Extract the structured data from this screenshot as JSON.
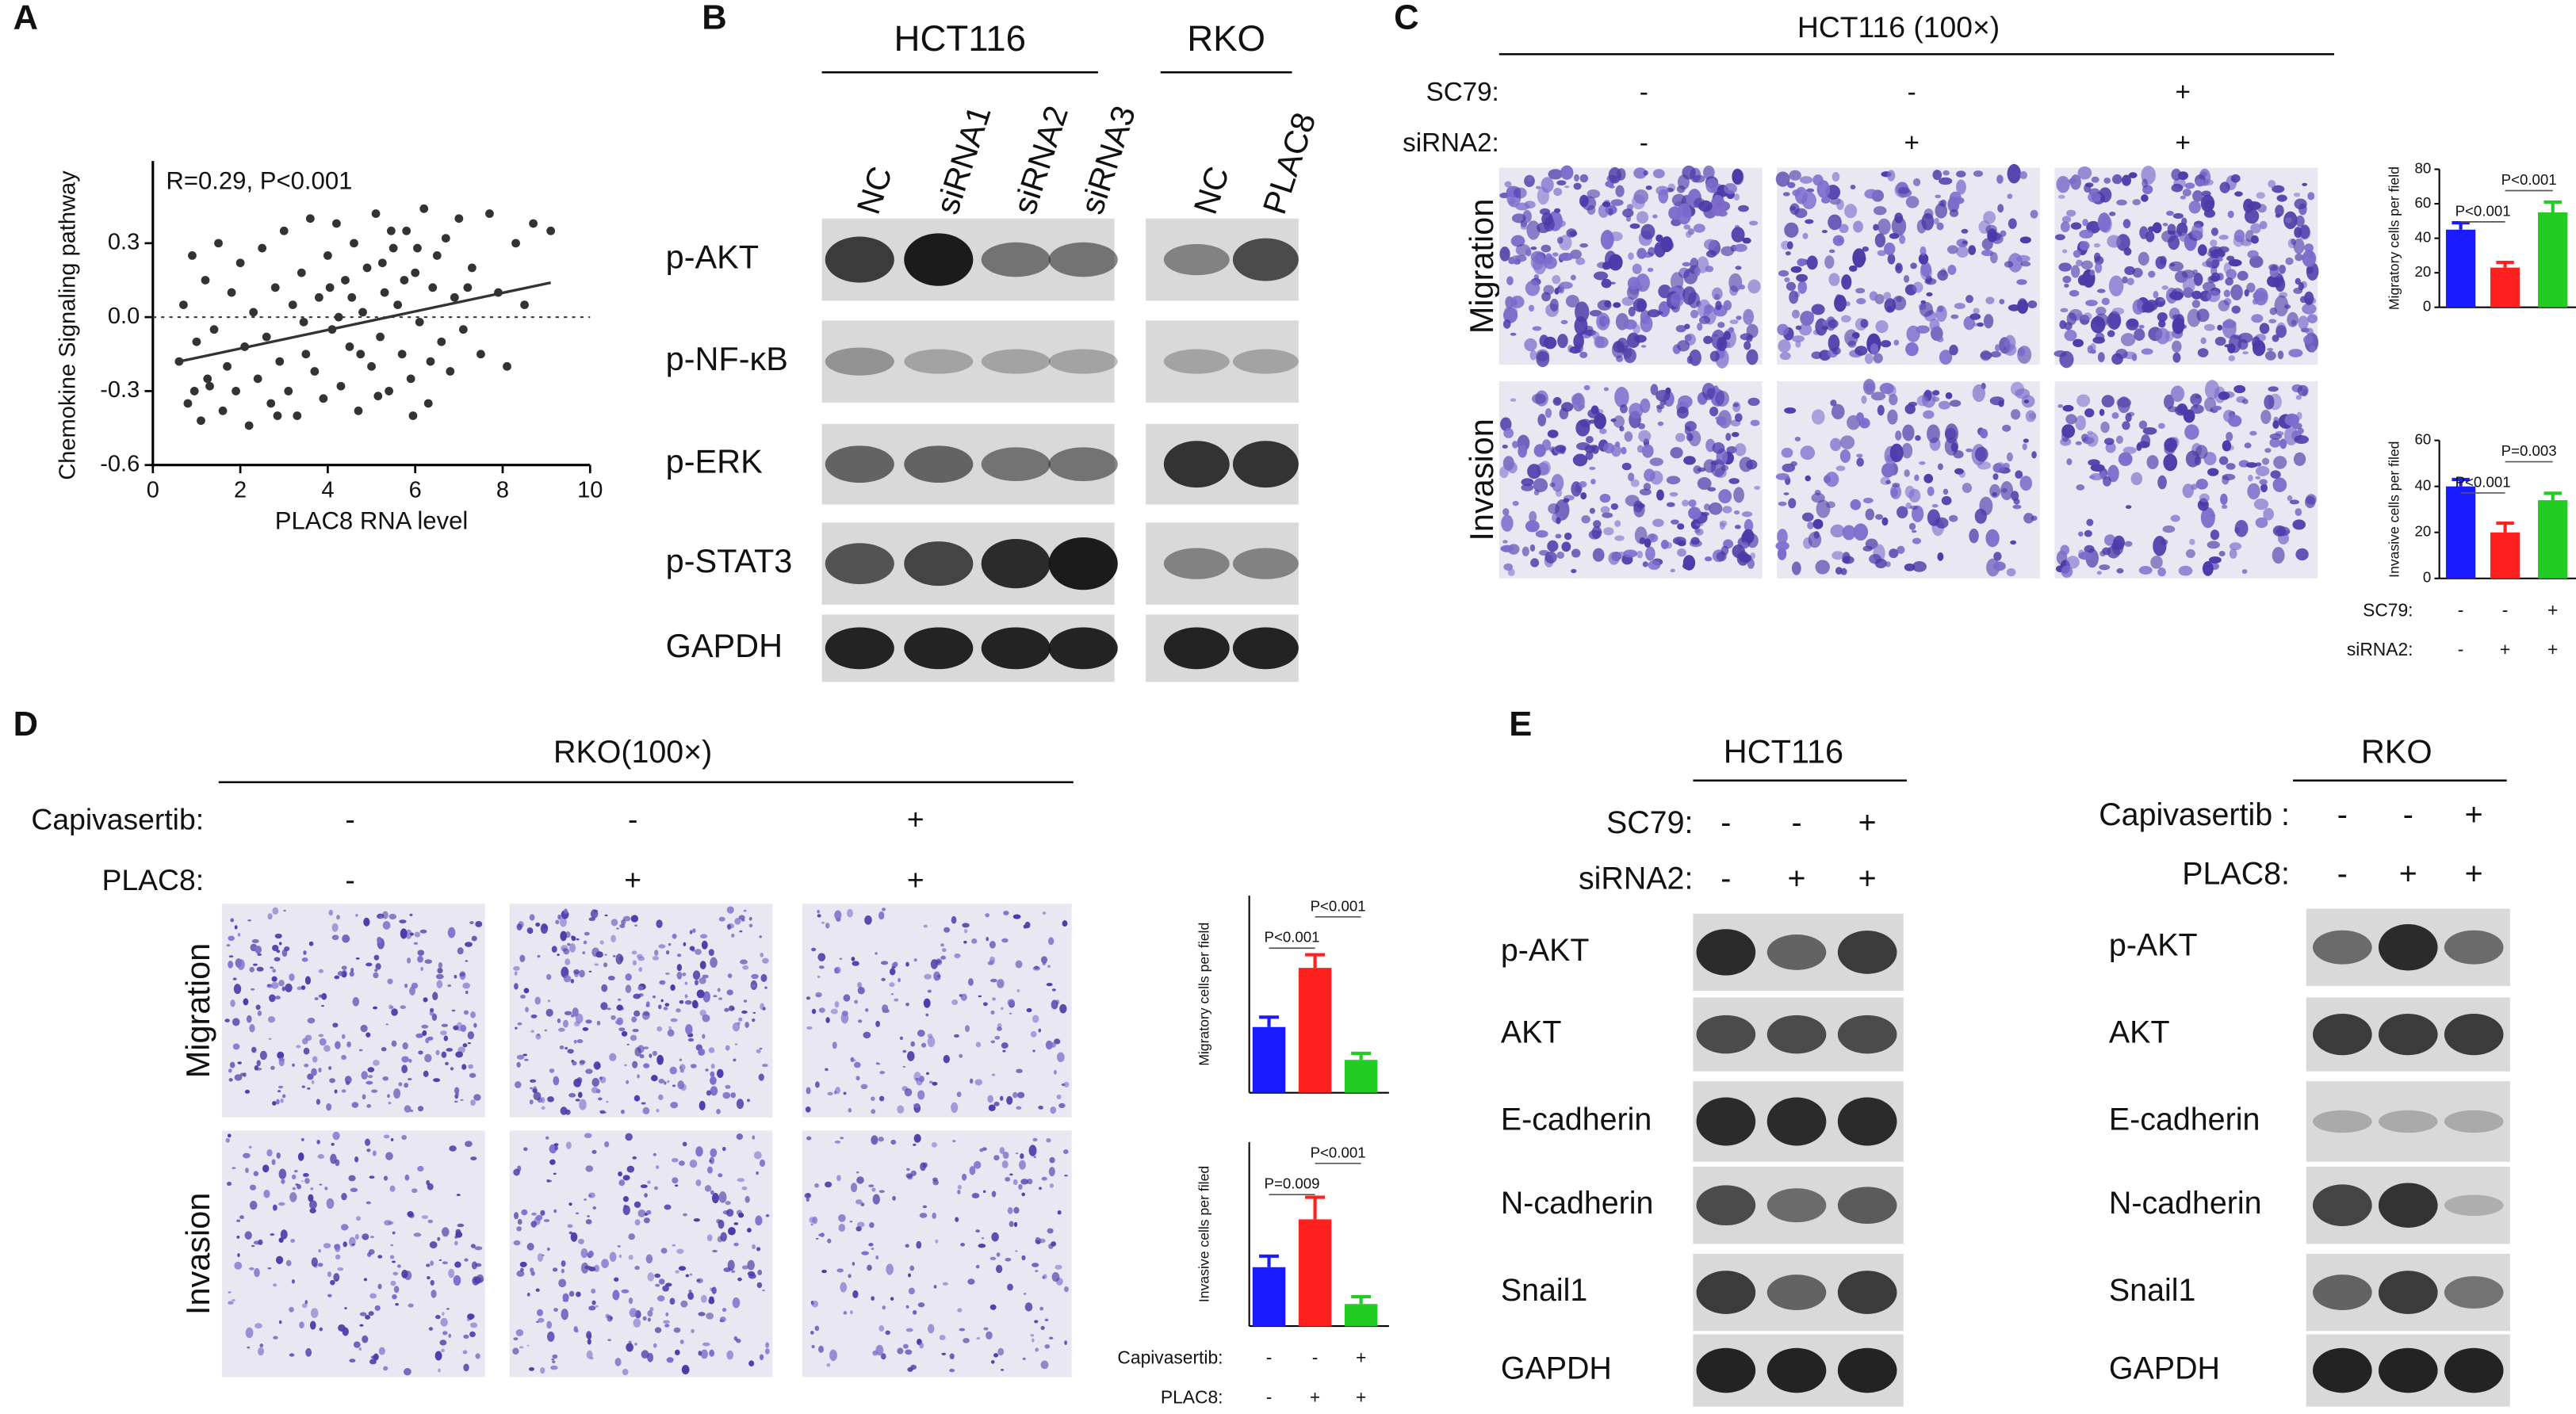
{
  "panel_labels": [
    "A",
    "B",
    "C",
    "D",
    "E"
  ],
  "chart_data": [
    {
      "type": "scatter",
      "annotation": "R=0.29, P<0.001",
      "xlabel": "PLAC8 RNA level",
      "ylabel": "Chemokine Signaling pathway",
      "xlim": [
        0,
        10
      ],
      "xticks": [
        0,
        2,
        4,
        6,
        8,
        10
      ],
      "ylim": [
        -0.6,
        0.6
      ],
      "yticks": [
        -0.6,
        -0.3,
        {
          "value": 0,
          "label": "0.0"
        },
        0.3
      ],
      "hline": 0,
      "color": "#333333",
      "trend_line": {
        "x": [
          0.6,
          9.1
        ],
        "y": [
          -0.18,
          0.14
        ]
      },
      "x": [
        0.6,
        0.7,
        0.8,
        0.9,
        1.0,
        1.1,
        1.2,
        1.3,
        1.4,
        1.5,
        1.6,
        1.7,
        1.8,
        1.9,
        2.0,
        2.1,
        2.2,
        2.3,
        2.4,
        2.5,
        2.6,
        2.7,
        2.8,
        2.9,
        3.0,
        3.1,
        3.2,
        3.3,
        3.4,
        3.5,
        3.6,
        3.7,
        3.8,
        3.9,
        4.0,
        4.1,
        4.2,
        4.3,
        4.4,
        4.5,
        4.6,
        4.7,
        4.8,
        4.9,
        5.0,
        5.1,
        5.2,
        5.3,
        5.4,
        5.5,
        5.6,
        5.7,
        5.8,
        5.9,
        6.0,
        6.1,
        6.2,
        6.3,
        6.4,
        6.5,
        6.6,
        6.7,
        6.8,
        6.9,
        7.0,
        7.1,
        7.3,
        7.5,
        7.7,
        7.9,
        8.1,
        8.3,
        8.5,
        8.7,
        9.1,
        4.25,
        4.75,
        5.25,
        5.75,
        5.15,
        4.55,
        3.45,
        2.85,
        6.05,
        5.45,
        1.25,
        0.95,
        6.35,
        7.2,
        5.95,
        4.05
      ],
      "values": [
        -0.18,
        0.05,
        -0.35,
        0.25,
        -0.1,
        -0.42,
        0.15,
        -0.28,
        -0.05,
        0.3,
        -0.38,
        -0.2,
        0.1,
        -0.3,
        0.22,
        -0.12,
        -0.44,
        0.02,
        -0.25,
        0.28,
        -0.08,
        -0.35,
        0.12,
        -0.18,
        0.35,
        -0.3,
        0.05,
        -0.4,
        0.18,
        -0.15,
        0.4,
        -0.22,
        0.08,
        -0.33,
        0.25,
        -0.05,
        0.38,
        -0.28,
        0.15,
        -0.12,
        0.3,
        -0.38,
        0.02,
        0.2,
        -0.2,
        0.42,
        -0.08,
        0.1,
        -0.3,
        0.28,
        0.05,
        -0.15,
        0.35,
        -0.25,
        0.18,
        -0.02,
        0.44,
        -0.35,
        0.12,
        0.25,
        -0.1,
        0.32,
        -0.22,
        0.08,
        0.4,
        -0.05,
        0.2,
        -0.15,
        0.42,
        0.1,
        -0.2,
        0.3,
        0.05,
        0.38,
        0.35,
        0.0,
        -0.15,
        0.22,
        0.15,
        -0.32,
        0.08,
        -0.02,
        -0.4,
        0.28,
        0.35,
        -0.25,
        -0.3,
        -0.18,
        0.12,
        -0.4,
        0.12
      ]
    },
    {
      "type": "bar",
      "ylabel": "Migratory cells per field",
      "ylim": [
        0,
        80
      ],
      "yticks": [
        0,
        20,
        40,
        60,
        80
      ],
      "values": [
        45,
        23,
        55
      ],
      "errors": [
        4,
        3,
        6
      ],
      "colors": [
        "#1a1aff",
        "#ff2020",
        "#22cc22"
      ],
      "annotations": [
        "P<0.001",
        "P<0.001"
      ]
    },
    {
      "type": "bar",
      "ylabel": "Invasive cells per filed",
      "ylim": [
        0,
        60
      ],
      "yticks": [
        0,
        20,
        40,
        60
      ],
      "values": [
        40,
        20,
        34
      ],
      "errors": [
        3,
        4,
        3
      ],
      "colors": [
        "#1a1aff",
        "#ff2020",
        "#22cc22"
      ],
      "annotations": [
        "P<0.001",
        "P=0.003"
      ],
      "conditions": [
        {
          "label": "SC79:",
          "values": [
            "-",
            "-",
            "+"
          ]
        },
        {
          "label": "siRNA2:",
          "values": [
            "-",
            "+",
            "+"
          ]
        }
      ]
    },
    {
      "type": "bar",
      "ylabel": "Migratory cells per field",
      "ylim": [
        0,
        60
      ],
      "values": [
        20,
        38,
        10
      ],
      "errors": [
        3,
        4,
        2
      ],
      "colors": [
        "#1a1aff",
        "#ff2020",
        "#22cc22"
      ],
      "annotations": [
        "P<0.001",
        "P<0.001"
      ]
    },
    {
      "type": "bar",
      "ylabel": "Invasive cells per filed",
      "ylim": [
        0,
        25
      ],
      "values": [
        8,
        14.5,
        3
      ],
      "errors": [
        1.5,
        3,
        1
      ],
      "colors": [
        "#1a1aff",
        "#ff2020",
        "#22cc22"
      ],
      "annotations": [
        "P=0.009",
        "P<0.001"
      ],
      "conditions": [
        {
          "label": "Capivasertib:",
          "values": [
            "-",
            "-",
            "+"
          ]
        },
        {
          "label": "PLAC8:",
          "values": [
            "-",
            "+",
            "+"
          ]
        }
      ]
    }
  ],
  "panel_b": {
    "groups": [
      {
        "title": "HCT116",
        "lanes": [
          "NC",
          "siRNA1",
          "siRNA2",
          "siRNA3"
        ]
      },
      {
        "title": "RKO",
        "lanes": [
          "NC",
          "PLAC8"
        ]
      }
    ],
    "rows": [
      "p-AKT",
      "p-NF-κB",
      "p-ERK",
      "p-STAT3",
      "GAPDH"
    ]
  },
  "panel_c": {
    "title": "HCT116 (100×)",
    "conditions": [
      {
        "label": "SC79:",
        "values": [
          "-",
          "-",
          "+"
        ]
      },
      {
        "label": "siRNA2:",
        "values": [
          "-",
          "+",
          "+"
        ]
      }
    ],
    "rows": [
      "Migration",
      "Invasion"
    ]
  },
  "panel_d": {
    "title": "RKO(100×)",
    "conditions": [
      {
        "label": "Capivasertib:",
        "values": [
          "-",
          "-",
          "+"
        ]
      },
      {
        "label": "PLAC8:",
        "values": [
          "-",
          "+",
          "+"
        ]
      }
    ],
    "rows": [
      "Migration",
      "Invasion"
    ]
  },
  "panel_e": {
    "groups": [
      {
        "title": "HCT116",
        "conditions": [
          {
            "label": "SC79:",
            "values": [
              "-",
              "-",
              "+"
            ]
          },
          {
            "label": "siRNA2:",
            "values": [
              "-",
              "+",
              "+"
            ]
          }
        ],
        "rows": [
          "p-AKT",
          "AKT",
          "E-cadherin",
          "N-cadherin",
          "Snail1",
          "GAPDH"
        ]
      },
      {
        "title": "RKO",
        "conditions": [
          {
            "label": "Capivasertib :",
            "values": [
              "-",
              "-",
              "+"
            ]
          },
          {
            "label": "PLAC8:",
            "values": [
              "-",
              "+",
              "+"
            ]
          }
        ],
        "rows": [
          "p-AKT",
          "AKT",
          "E-cadherin",
          "N-cadherin",
          "Snail1",
          "GAPDH"
        ]
      }
    ]
  }
}
